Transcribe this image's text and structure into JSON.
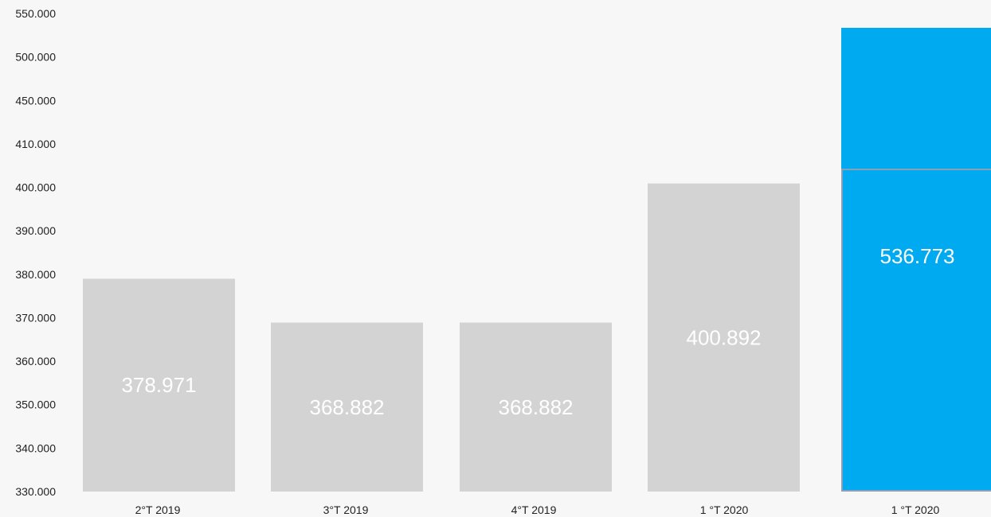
{
  "chart_data": {
    "type": "bar",
    "title": "",
    "xlabel": "",
    "ylabel": "",
    "y_tick_labels": [
      "550.000",
      "500.000",
      "450.000",
      "410.000",
      "400.000",
      "390.000",
      "380.000",
      "370.000",
      "360.000",
      "350.000",
      "340.000",
      "330.000"
    ],
    "grid": false,
    "categories": [
      "2°T 2019",
      "3°T 2019",
      "4°T 2019",
      "1 °T 2020",
      "1 °T 2020"
    ],
    "values": [
      378971,
      368882,
      368882,
      400892,
      536773
    ],
    "value_labels": [
      "378.971",
      "368.882",
      "368.882",
      "400.892",
      "536.773"
    ],
    "colors": {
      "default_bar": "#d3d3d3",
      "highlight_bar": "#00aaf0",
      "highlight_border": "#8aa0b8"
    },
    "highlight_index": 4
  }
}
